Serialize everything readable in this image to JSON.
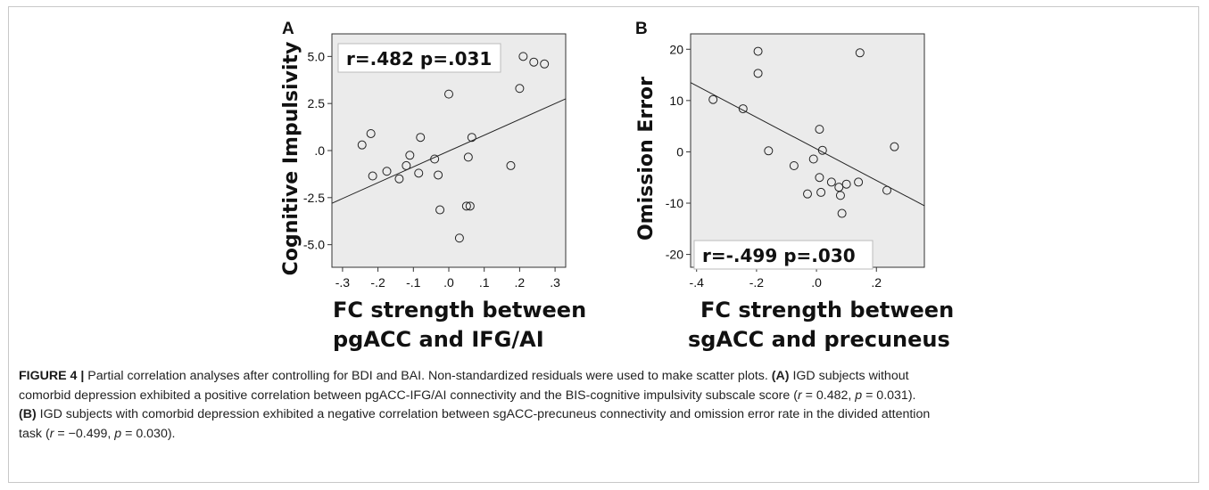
{
  "chart_data": [
    {
      "type": "scatter",
      "panel_label": "A",
      "ylabel": "Cognitive Impulsivity",
      "xlabel_lines": [
        "FC strength between",
        "pgACC and  IFG/AI"
      ],
      "annotation": "r=.482 p=.031",
      "xlim": [
        -0.33,
        0.33
      ],
      "ylim": [
        -6.2,
        6.2
      ],
      "xticks": [
        -0.3,
        -0.2,
        -0.1,
        0.0,
        0.1,
        0.2,
        0.3
      ],
      "xtick_labels": [
        "-.3",
        "-.2",
        "-.1",
        ".0",
        ".1",
        ".2",
        ".3"
      ],
      "yticks": [
        5.0,
        2.5,
        0.0,
        -2.5,
        -5.0
      ],
      "ytick_labels": [
        "5.0",
        "2.5",
        ".0",
        "-2.5",
        "-5.0"
      ],
      "fit_line": [
        [
          -0.33,
          -2.8
        ],
        [
          0.33,
          2.75
        ]
      ],
      "points": [
        [
          -0.245,
          0.3
        ],
        [
          -0.22,
          0.9
        ],
        [
          -0.215,
          -1.35
        ],
        [
          -0.175,
          -1.1
        ],
        [
          -0.14,
          -1.5
        ],
        [
          -0.12,
          -0.8
        ],
        [
          -0.11,
          -0.25
        ],
        [
          -0.085,
          -1.2
        ],
        [
          -0.08,
          0.7
        ],
        [
          -0.04,
          -0.45
        ],
        [
          0.0,
          3.0
        ],
        [
          -0.025,
          -3.15
        ],
        [
          -0.03,
          -1.3
        ],
        [
          0.03,
          -4.65
        ],
        [
          0.05,
          -2.95
        ],
        [
          0.055,
          -0.35
        ],
        [
          0.06,
          -2.95
        ],
        [
          0.065,
          0.7
        ],
        [
          0.175,
          -0.8
        ],
        [
          0.2,
          3.3
        ],
        [
          0.21,
          5.0
        ],
        [
          0.24,
          4.7
        ],
        [
          0.27,
          4.6
        ]
      ]
    },
    {
      "type": "scatter",
      "panel_label": "B",
      "ylabel": "Omission Error",
      "xlabel_lines": [
        "FC strength between",
        "sgACC and precuneus"
      ],
      "annotation": "r=-.499 p=.030",
      "xlim": [
        -0.42,
        0.36
      ],
      "ylim": [
        -22.5,
        23
      ],
      "xticks": [
        -0.4,
        -0.2,
        0.0,
        0.2
      ],
      "xtick_labels": [
        "-.4",
        "-.2",
        ".0",
        ".2"
      ],
      "yticks": [
        20,
        10,
        0,
        -10,
        -20
      ],
      "ytick_labels": [
        "20",
        "10",
        "0",
        "-10",
        "-20"
      ],
      "fit_line": [
        [
          -0.42,
          13.5
        ],
        [
          0.36,
          -10.5
        ]
      ],
      "points": [
        [
          -0.345,
          10.2
        ],
        [
          -0.245,
          8.4
        ],
        [
          -0.195,
          19.6
        ],
        [
          -0.195,
          15.3
        ],
        [
          -0.16,
          0.2
        ],
        [
          -0.075,
          -2.7
        ],
        [
          -0.03,
          -8.2
        ],
        [
          -0.01,
          -1.4
        ],
        [
          0.01,
          4.4
        ],
        [
          0.01,
          -5.0
        ],
        [
          0.015,
          -7.9
        ],
        [
          0.02,
          0.3
        ],
        [
          0.05,
          -5.9
        ],
        [
          0.075,
          -6.9
        ],
        [
          0.08,
          -8.5
        ],
        [
          0.085,
          -12.0
        ],
        [
          0.1,
          -6.3
        ],
        [
          0.14,
          -5.9
        ],
        [
          0.145,
          19.3
        ],
        [
          0.235,
          -7.5
        ],
        [
          0.26,
          1.0
        ]
      ]
    }
  ],
  "caption": {
    "label": "FIGURE 4 |",
    "intro": " Partial correlation analyses after controlling for BDI and BAI. Non-standardized residuals were used to make scatter plots. ",
    "a_tag": "(A)",
    "a_text1": " IGD subjects without",
    "a_text2": "comorbid depression exhibited a positive correlation between pgACC-IFG/AI connectivity and the BIS-cognitive impulsivity subscale score (",
    "a_r": "r",
    "a_rval": " = 0.482, ",
    "a_p": "p",
    "a_pval": " = 0.031).",
    "b_tag": "(B)",
    "b_text1": " IGD subjects with comorbid depression exhibited a negative correlation between sgACC-precuneus connectivity and omission error rate in the divided attention",
    "b_text2": "task (",
    "b_r": "r",
    "b_rval": " = −0.499, ",
    "b_p": "p",
    "b_pval": " = 0.030)."
  }
}
